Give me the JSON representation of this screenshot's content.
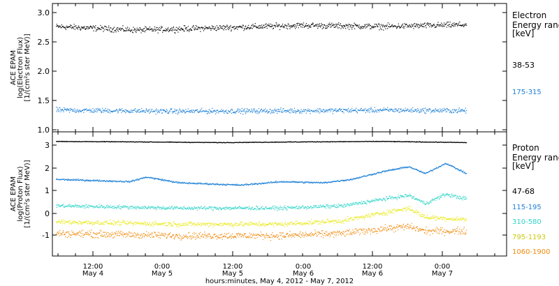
{
  "chart_data": [
    {
      "type": "scatter",
      "ylabel": [
        "ACE EPAM",
        "log(Electron Flux)",
        "[1/(cm²s ster MeV)]"
      ],
      "ylim": [
        0.95,
        3.1
      ],
      "yticks": [
        "1.0",
        "1.5",
        "2.0",
        "2.5",
        "3.0"
      ],
      "legend_title": [
        "Electron",
        "Energy ranges",
        "[keV]"
      ],
      "series": [
        {
          "name": "38-53",
          "color": "#000000",
          "base": 2.7,
          "noise": 0.07,
          "trend": [
            [
              0,
              2.72
            ],
            [
              0.2,
              2.66
            ],
            [
              0.4,
              2.7
            ],
            [
              0.6,
              2.74
            ],
            [
              0.8,
              2.72
            ],
            [
              1,
              2.75
            ]
          ]
        },
        {
          "name": "175-315",
          "color": "#1a7fd6",
          "base": 1.3,
          "noise": 0.06,
          "trend": [
            [
              0,
              1.32
            ],
            [
              0.3,
              1.3
            ],
            [
              0.6,
              1.31
            ],
            [
              0.8,
              1.32
            ],
            [
              1,
              1.31
            ]
          ]
        }
      ]
    },
    {
      "type": "scatter",
      "ylabel": [
        "ACE EPAM",
        "log(Proton Flux)",
        "[1/(cm²s ster MeV)]"
      ],
      "ylim": [
        -1.9,
        3.5
      ],
      "yticks": [
        "-1",
        "0",
        "1",
        "2",
        "3"
      ],
      "legend_title": [
        "Proton",
        "Energy ranges",
        "[keV]"
      ],
      "series": [
        {
          "name": "47-68",
          "color": "#000000",
          "noise": 0.02,
          "trend": [
            [
              0,
              3.1
            ],
            [
              0.2,
              3.08
            ],
            [
              0.4,
              3.05
            ],
            [
              0.6,
              3.08
            ],
            [
              0.8,
              3.1
            ],
            [
              1,
              3.05
            ]
          ]
        },
        {
          "name": "115-195",
          "color": "#1a7fd6",
          "noise": 0.05,
          "trend": [
            [
              0,
              1.45
            ],
            [
              0.18,
              1.35
            ],
            [
              0.22,
              1.55
            ],
            [
              0.3,
              1.3
            ],
            [
              0.45,
              1.2
            ],
            [
              0.55,
              1.35
            ],
            [
              0.65,
              1.3
            ],
            [
              0.72,
              1.45
            ],
            [
              0.8,
              1.8
            ],
            [
              0.86,
              2.0
            ],
            [
              0.9,
              1.7
            ],
            [
              0.95,
              2.15
            ],
            [
              1,
              1.7
            ]
          ]
        },
        {
          "name": "310-580",
          "color": "#2fd4c8",
          "noise": 0.12,
          "trend": [
            [
              0,
              0.3
            ],
            [
              0.3,
              0.2
            ],
            [
              0.55,
              0.2
            ],
            [
              0.7,
              0.3
            ],
            [
              0.8,
              0.6
            ],
            [
              0.86,
              0.75
            ],
            [
              0.9,
              0.4
            ],
            [
              0.95,
              0.8
            ],
            [
              1,
              0.6
            ]
          ]
        },
        {
          "name": "795-1193",
          "color": "#e8e817",
          "noise": 0.15,
          "trend": [
            [
              0,
              -0.4
            ],
            [
              0.3,
              -0.5
            ],
            [
              0.55,
              -0.5
            ],
            [
              0.7,
              -0.35
            ],
            [
              0.8,
              0.0
            ],
            [
              0.86,
              0.2
            ],
            [
              0.9,
              -0.2
            ],
            [
              1,
              -0.3
            ]
          ]
        },
        {
          "name": "1060-1900",
          "color": "#f08a0c",
          "noise": 0.22,
          "trend": [
            [
              0,
              -0.9
            ],
            [
              0.3,
              -1.0
            ],
            [
              0.55,
              -1.0
            ],
            [
              0.7,
              -0.9
            ],
            [
              0.8,
              -0.7
            ],
            [
              0.86,
              -0.6
            ],
            [
              0.9,
              -0.8
            ],
            [
              1,
              -0.8
            ]
          ]
        }
      ]
    }
  ],
  "x_axis": {
    "ticks": [
      {
        "time": "12:00",
        "day": "May 4"
      },
      {
        "time": "0:00",
        "day": "May 5"
      },
      {
        "time": "12:00",
        "day": "May 5"
      },
      {
        "time": "0:00",
        "day": "May 6"
      },
      {
        "time": "12:00",
        "day": "May 6"
      },
      {
        "time": "0:00",
        "day": "May 7"
      }
    ],
    "label": "hours:minutes,  May  4, 2012 - May  7, 2012"
  }
}
